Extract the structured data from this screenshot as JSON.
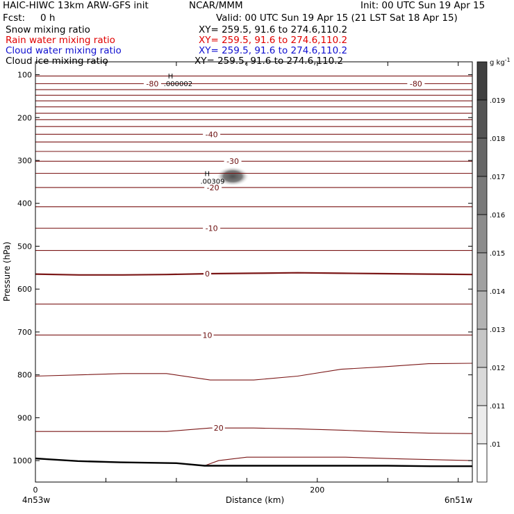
{
  "header": {
    "title_left": "HAIC-HIWC 13km ARW-GFS init",
    "org": "NCAR/MMM",
    "init": "Init: 00 UTC Sun 19 Apr 15",
    "fcst_label": "Fcst:",
    "fcst_value": "0 h",
    "valid": "Valid: 00 UTC Sun 19 Apr 15 (21 LST Sat 18 Apr 15)"
  },
  "fields": [
    {
      "name": "Snow mixing ratio",
      "xy": "XY= 259.5, 91.6 to 274.6,110.2",
      "color": "#000000"
    },
    {
      "name": "Rain water mixing ratio",
      "xy": "XY= 259.5, 91.6 to 274.6,110.2",
      "color": "#e00000"
    },
    {
      "name": "Cloud water mixing ratio",
      "xy": "XY= 259.5, 91.6 to 274.6,110.2",
      "color": "#1010d0"
    },
    {
      "name": "Cloud ice mixing ratio",
      "xy": "XY= 259.5, 91.6 to 274.6,110.2",
      "color": "#000000"
    }
  ],
  "chart_data": {
    "type": "cross-section",
    "xlabel": "Distance (km)",
    "ylabel": "Pressure (hPa)",
    "xlim": [
      0,
      310
    ],
    "ylim": [
      1050,
      70
    ],
    "x_ticks": [
      0,
      200
    ],
    "y_ticks": [
      100,
      200,
      300,
      400,
      500,
      600,
      700,
      800,
      900,
      1000
    ],
    "x_end_labels": {
      "left": "4n53w",
      "right": "6n51w"
    },
    "temperature_contours": [
      {
        "p": [
          103,
          103,
          103,
          103,
          103,
          103,
          103,
          103,
          103,
          103,
          103
        ]
      },
      {
        "p": [
          121,
          121,
          121,
          121,
          121,
          121,
          121,
          121,
          121,
          121,
          121
        ],
        "label": "-80",
        "label_x": [
          83,
          270
        ]
      },
      {
        "p": [
          135,
          135,
          135,
          135,
          135,
          135,
          135,
          135,
          135,
          135,
          135
        ]
      },
      {
        "p": [
          148,
          148,
          148,
          148,
          148,
          148,
          148,
          148,
          148,
          148,
          148
        ]
      },
      {
        "p": [
          161,
          161,
          161,
          161,
          161,
          161,
          161,
          161,
          161,
          161,
          161
        ]
      },
      {
        "p": [
          175,
          175,
          175,
          175,
          175,
          175,
          175,
          175,
          175,
          175,
          175
        ]
      },
      {
        "p": [
          190,
          190,
          190,
          190,
          190,
          190,
          190,
          190,
          190,
          190,
          190
        ]
      },
      {
        "p": [
          205,
          205,
          205,
          205,
          205,
          205,
          205,
          205,
          205,
          205,
          205
        ]
      },
      {
        "p": [
          221,
          221,
          221,
          221,
          221,
          221,
          221,
          221,
          221,
          221,
          221
        ]
      },
      {
        "p": [
          239,
          239,
          239,
          239,
          239,
          239,
          239,
          239,
          239,
          239,
          239
        ],
        "label": "-40",
        "label_x": [
          125
        ]
      },
      {
        "p": [
          257,
          257,
          257,
          257,
          257,
          257,
          257,
          257,
          257,
          257,
          257
        ]
      },
      {
        "p": [
          279,
          279,
          279,
          279,
          279,
          279,
          279,
          279,
          279,
          279,
          279
        ]
      },
      {
        "p": [
          302,
          302,
          302,
          302,
          302,
          302,
          302,
          302,
          302,
          302,
          302
        ],
        "label": "-30",
        "label_x": [
          140
        ]
      },
      {
        "p": [
          330,
          330,
          330,
          330,
          330,
          330,
          330,
          330,
          330,
          330,
          330
        ]
      },
      {
        "p": [
          363,
          363,
          363,
          363,
          363,
          363,
          363,
          363,
          363,
          363,
          363
        ],
        "label": "-20",
        "label_x": [
          126
        ]
      },
      {
        "p": [
          408,
          408,
          408,
          408,
          408,
          408,
          408,
          408,
          408,
          408,
          408
        ]
      },
      {
        "p": [
          458,
          458,
          458,
          458,
          458,
          458,
          458,
          458,
          458,
          458,
          458
        ],
        "label": "-10",
        "label_x": [
          125
        ]
      },
      {
        "p": [
          510,
          510,
          510,
          510,
          510,
          510,
          510,
          510,
          510,
          510,
          510
        ]
      },
      {
        "p": [
          565,
          567,
          567,
          566,
          564,
          563,
          562,
          563,
          564,
          565,
          566
        ],
        "label": "0",
        "label_x": [
          122
        ],
        "bold": true
      },
      {
        "p": [
          635,
          635,
          635,
          635,
          635,
          635,
          635,
          635,
          635,
          635,
          635
        ]
      },
      {
        "p": [
          707,
          707,
          707,
          707,
          707,
          707,
          707,
          707,
          707,
          707,
          707
        ],
        "label": "10",
        "label_x": [
          122
        ]
      },
      {
        "p": [
          803,
          800,
          797,
          797,
          812,
          812,
          803,
          787,
          781,
          774,
          773
        ]
      },
      {
        "p": [
          932,
          932,
          932,
          932,
          924,
          924,
          926,
          929,
          933,
          936,
          937
        ],
        "label": "20",
        "label_x": [
          130
        ]
      }
    ],
    "lower_contour": {
      "x": [
        120,
        130,
        150,
        180,
        220,
        260,
        310
      ],
      "p": [
        1012,
        1000,
        992,
        992,
        992,
        996,
        1000
      ]
    },
    "terrain": {
      "x": [
        0,
        10,
        30,
        60,
        100,
        120,
        150,
        200,
        250,
        280,
        310
      ],
      "p": [
        995,
        997,
        1001,
        1004,
        1006,
        1012,
        1012,
        1012,
        1012,
        1013,
        1013
      ]
    },
    "highs": [
      {
        "label": "H",
        "value": ".000002",
        "x": 94,
        "p": 102
      },
      {
        "label": "H",
        "value": ".00309",
        "x": 120,
        "p": 330
      }
    ],
    "shaded_blob": {
      "x": 140,
      "p": 337
    },
    "colorbar": {
      "unit": "g kg",
      "unit_sup": "-1",
      "ticks": [
        ".019",
        ".018",
        ".017",
        ".016",
        ".015",
        ".014",
        ".013",
        ".012",
        ".011",
        ".01"
      ]
    }
  }
}
